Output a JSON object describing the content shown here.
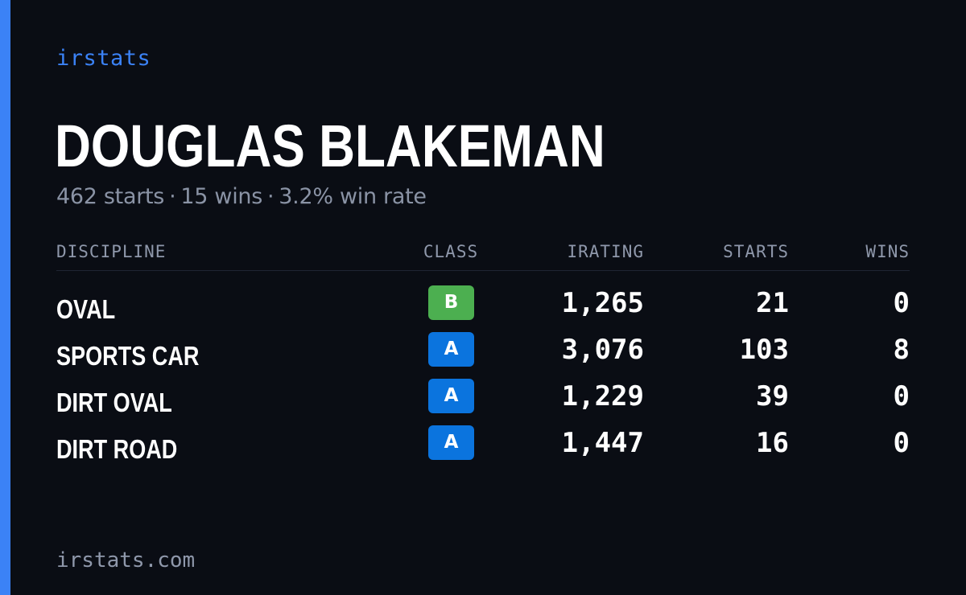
{
  "brand": "irstats",
  "driver": {
    "name": "DOUGLAS BLAKEMAN",
    "starts_text": "462 starts",
    "wins_text": "15 wins",
    "win_rate_text": "3.2% win rate",
    "separator": "·"
  },
  "table": {
    "headers": {
      "discipline": "DISCIPLINE",
      "class": "CLASS",
      "irating": "IRATING",
      "starts": "STARTS",
      "wins": "WINS"
    },
    "rows": [
      {
        "discipline": "OVAL",
        "class": "B",
        "class_color": "#4caf50",
        "irating": "1,265",
        "starts": "21",
        "wins": "0"
      },
      {
        "discipline": "SPORTS CAR",
        "class": "A",
        "class_color": "#0b74de",
        "irating": "3,076",
        "starts": "103",
        "wins": "8"
      },
      {
        "discipline": "DIRT OVAL",
        "class": "A",
        "class_color": "#0b74de",
        "irating": "1,229",
        "starts": "39",
        "wins": "0"
      },
      {
        "discipline": "DIRT ROAD",
        "class": "A",
        "class_color": "#0b74de",
        "irating": "1,447",
        "starts": "16",
        "wins": "0"
      }
    ]
  },
  "footer": "irstats.com",
  "colors": {
    "background": "#0a0d14",
    "accent": "#3b82f6",
    "muted_text": "#8a93a5"
  }
}
